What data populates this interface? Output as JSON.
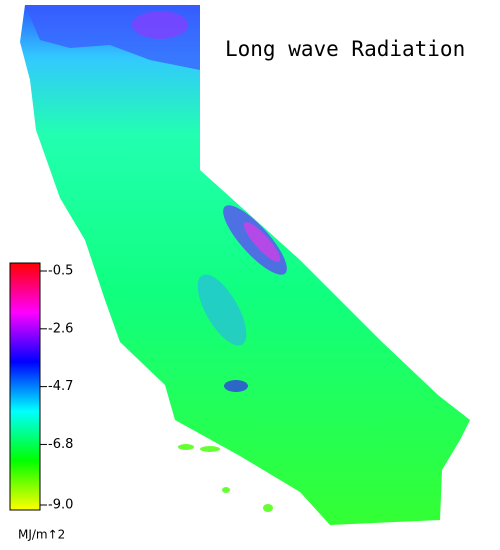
{
  "title": "Long wave Radiation",
  "colorbar": {
    "unit": "MJ/m↑2",
    "ticks": [
      -0.5,
      -2.6,
      -4.7,
      -6.8,
      {
        "value": -9,
        "label": "-9.0"
      }
    ],
    "colors": [
      "#ffff00",
      "#00ff00",
      "#00ffff",
      "#0000ff",
      "#ff00ff",
      "#ff0000"
    ]
  }
}
